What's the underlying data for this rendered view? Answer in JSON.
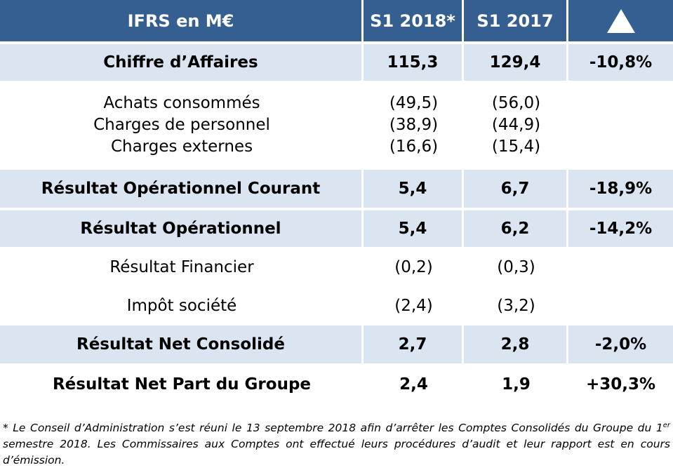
{
  "header": {
    "col_label": "IFRS en M€",
    "col_2018": "S1 2018*",
    "col_2017": "S1 2017",
    "col_delta_icon": "delta-triangle-icon"
  },
  "rows": {
    "ca": {
      "label": "Chiffre d’Affaires",
      "v2018": "115,3",
      "v2017": "129,4",
      "delta": "-10,8%"
    },
    "charges": {
      "labels": [
        "Achats consommés",
        "Charges de personnel",
        "Charges externes"
      ],
      "v2018": [
        "(49,5)",
        "(38,9)",
        "(16,6)"
      ],
      "v2017": [
        "(56,0)",
        "(44,9)",
        "(15,4)"
      ]
    },
    "roc": {
      "label": "Résultat Opérationnel Courant",
      "v2018": "5,4",
      "v2017": "6,7",
      "delta": "-18,9%"
    },
    "ro": {
      "label": "Résultat Opérationnel",
      "v2018": "5,4",
      "v2017": "6,2",
      "delta": "-14,2%"
    },
    "rf": {
      "label": "Résultat Financier",
      "v2018": "(0,2)",
      "v2017": "(0,3)",
      "delta": ""
    },
    "is": {
      "label": "Impôt société",
      "v2018": "(2,4)",
      "v2017": "(3,2)",
      "delta": ""
    },
    "rnc": {
      "label": "Résultat Net Consolidé",
      "v2018": "2,7",
      "v2017": "2,8",
      "delta": "-2,0%"
    },
    "rnpg": {
      "label": "Résultat Net Part du Groupe",
      "v2018": "2,4",
      "v2017": "1,9",
      "delta": "+30,3%"
    }
  },
  "footnote": {
    "part1": "* Le Conseil d’Administration s’est réuni le 13 septembre 2018 afin d’arrêter les Comptes Consolidés du Groupe du 1",
    "sup": "er",
    "part2": " semestre 2018. Les Commissaires aux Comptes ont effectué leurs procédures d’audit et leur rapport est en cours d’émission."
  },
  "colors": {
    "header_bg": "#365f91",
    "band_bg": "#dbe5f1"
  }
}
